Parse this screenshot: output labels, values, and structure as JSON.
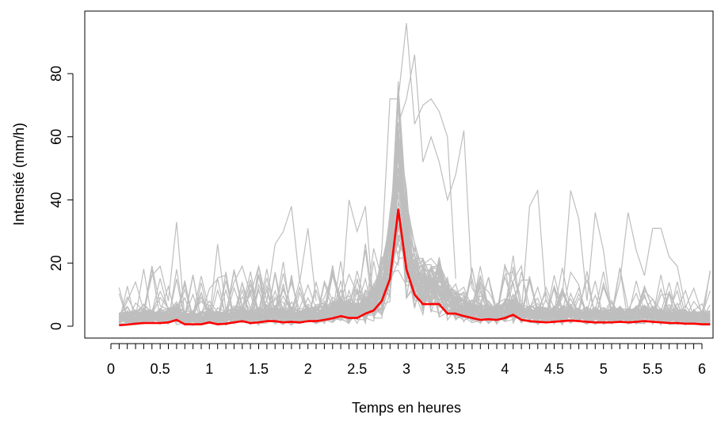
{
  "chart_data": {
    "type": "line",
    "title": "",
    "xlabel": "Temps en heures",
    "ylabel": "Intensité (mm/h)",
    "xlim": [
      0,
      6.1
    ],
    "ylim": [
      -2,
      98
    ],
    "x_tick_labels": [
      "0",
      "0.5",
      "1",
      "1.5",
      "2",
      "2.5",
      "3",
      "3.5",
      "4",
      "4.5",
      "5",
      "5.5",
      "6"
    ],
    "y_tick_labels": [
      "0",
      "20",
      "40",
      "60",
      "80"
    ],
    "grid": false,
    "legend": "none",
    "colors": {
      "ensemble": "#bebebe",
      "mean": "#ff0000"
    },
    "series": [
      {
        "role": "mean",
        "x": [
          0.083,
          0.167,
          0.25,
          0.333,
          0.417,
          0.5,
          0.583,
          0.667,
          0.75,
          0.833,
          0.917,
          1.0,
          1.083,
          1.167,
          1.25,
          1.333,
          1.417,
          1.5,
          1.583,
          1.667,
          1.75,
          1.833,
          1.917,
          2.0,
          2.083,
          2.167,
          2.25,
          2.333,
          2.417,
          2.5,
          2.583,
          2.667,
          2.75,
          2.833,
          2.917,
          3.0,
          3.083,
          3.167,
          3.25,
          3.333,
          3.417,
          3.5,
          3.583,
          3.667,
          3.75,
          3.833,
          3.917,
          4.0,
          4.083,
          4.167,
          4.25,
          4.333,
          4.417,
          4.5,
          4.583,
          4.667,
          4.75,
          4.833,
          4.917,
          5.0,
          5.083,
          5.167,
          5.25,
          5.333,
          5.417,
          5.5,
          5.583,
          5.667,
          5.75,
          5.833,
          5.917,
          6.0,
          6.083
        ],
        "values": [
          0.3,
          0.5,
          0.8,
          1.0,
          1.0,
          1.0,
          1.2,
          2.0,
          0.6,
          0.6,
          0.6,
          1.2,
          0.6,
          0.8,
          1.2,
          1.6,
          1.0,
          1.2,
          1.6,
          1.6,
          1.2,
          1.4,
          1.2,
          1.6,
          1.6,
          2.0,
          2.5,
          3.2,
          2.6,
          2.6,
          4.0,
          5.0,
          8.0,
          15.0,
          37.0,
          18.0,
          10.0,
          7.0,
          7.0,
          7.0,
          4.0,
          4.0,
          3.2,
          2.6,
          2.0,
          2.2,
          2.0,
          2.6,
          3.6,
          2.0,
          1.6,
          1.4,
          1.2,
          1.4,
          1.6,
          1.8,
          1.6,
          1.4,
          1.2,
          1.2,
          1.2,
          1.4,
          1.2,
          1.4,
          1.6,
          1.4,
          1.2,
          1.0,
          1.0,
          0.8,
          0.8,
          0.6,
          0.6
        ]
      }
    ],
    "ensemble_extremes": [
      {
        "x": [
          0.083,
          0.25,
          0.333,
          0.417,
          0.5,
          0.583,
          0.667,
          0.75
        ],
        "values": [
          2,
          14,
          5,
          16,
          19,
          8,
          33,
          2
        ]
      },
      {
        "x": [
          1.0,
          1.083,
          1.167,
          1.25,
          1.333,
          1.417,
          1.5,
          1.583,
          1.667,
          1.75,
          1.833,
          1.917,
          2.0,
          2.083
        ],
        "values": [
          2,
          26,
          5,
          14,
          19,
          10,
          19,
          8,
          26,
          30,
          38,
          14,
          31,
          8
        ]
      },
      {
        "x": [
          2.333,
          2.417,
          2.5,
          2.583,
          2.667,
          2.75,
          2.833,
          2.917,
          3.0,
          3.083,
          3.167,
          3.25,
          3.333,
          3.417,
          3.5
        ],
        "values": [
          5,
          40,
          30,
          38,
          6,
          24,
          72,
          72,
          96,
          64,
          70,
          72,
          68,
          60,
          15
        ]
      },
      {
        "x": [
          2.75,
          2.833,
          2.917,
          3.0,
          3.083,
          3.167,
          3.25,
          3.333,
          3.417,
          3.5,
          3.583,
          3.667,
          3.75
        ],
        "values": [
          10,
          22,
          64,
          72,
          86,
          52,
          60,
          52,
          40,
          48,
          62,
          12,
          8
        ]
      },
      {
        "x": [
          4.167,
          4.25,
          4.333,
          4.417,
          4.5,
          4.583,
          4.667,
          4.75,
          4.833,
          4.917,
          5.0,
          5.083,
          5.167,
          5.25,
          5.333,
          5.417,
          5.5,
          5.583,
          5.667,
          5.75,
          5.833,
          5.917,
          6.0,
          6.083
        ],
        "values": [
          4,
          38,
          43,
          8,
          4,
          9,
          43,
          34,
          8,
          36,
          24,
          4,
          14,
          36,
          24,
          16,
          31,
          31,
          22,
          19,
          6,
          12,
          4,
          17
        ]
      }
    ]
  }
}
